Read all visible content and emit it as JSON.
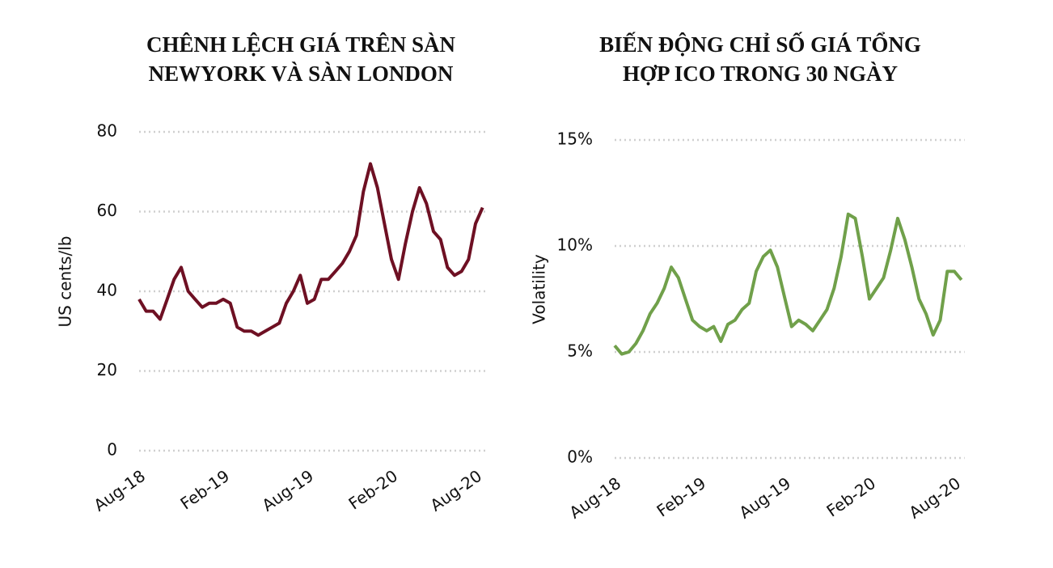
{
  "chart_data": [
    {
      "type": "line",
      "title": [
        "CHÊNH LỆCH GIÁ TRÊN SÀN",
        "NEWYORK VÀ SÀN LONDON"
      ],
      "y_label": "US cents/lb",
      "categories": [
        "Aug-18",
        null,
        null,
        null,
        null,
        null,
        null,
        null,
        null,
        null,
        null,
        null,
        "Feb-19",
        null,
        null,
        null,
        null,
        null,
        null,
        null,
        null,
        null,
        null,
        null,
        "Aug-19",
        null,
        null,
        null,
        null,
        null,
        null,
        null,
        null,
        null,
        null,
        null,
        "Feb-20",
        null,
        null,
        null,
        null,
        null,
        null,
        null,
        null,
        null,
        null,
        null,
        "Aug-20",
        null
      ],
      "series": [
        {
          "name": "US cents/lb",
          "color": "#6e1023",
          "values": [
            38,
            35,
            35,
            33,
            38,
            43,
            46,
            40,
            38,
            36,
            37,
            37,
            38,
            37,
            31,
            30,
            30,
            29,
            30,
            31,
            32,
            37,
            40,
            44,
            37,
            38,
            43,
            43,
            45,
            47,
            50,
            54,
            65,
            72,
            66,
            57,
            48,
            43,
            52,
            60,
            66,
            62,
            55,
            53,
            46,
            44,
            45,
            48,
            57,
            61
          ]
        }
      ],
      "ylim": [
        0,
        80
      ],
      "yticks": [
        0,
        20,
        40,
        60,
        80
      ],
      "grid": true
    },
    {
      "type": "line",
      "title": [
        "BIẾN ĐỘNG CHỈ SỐ GIÁ TỔNG",
        "HỢP ICO TRONG 30 NGÀY"
      ],
      "y_label": "Volatility",
      "categories": [
        "Aug-18",
        null,
        null,
        null,
        null,
        null,
        null,
        null,
        null,
        null,
        null,
        null,
        "Feb-19",
        null,
        null,
        null,
        null,
        null,
        null,
        null,
        null,
        null,
        null,
        null,
        "Aug-19",
        null,
        null,
        null,
        null,
        null,
        null,
        null,
        null,
        null,
        null,
        null,
        "Feb-20",
        null,
        null,
        null,
        null,
        null,
        null,
        null,
        null,
        null,
        null,
        null,
        "Aug-20",
        null
      ],
      "series": [
        {
          "name": "Volatility",
          "color": "#70a04a",
          "values": [
            5.3,
            4.9,
            5.0,
            5.4,
            6.0,
            6.8,
            7.3,
            8.0,
            9.0,
            8.5,
            7.5,
            6.5,
            6.2,
            6.0,
            6.2,
            5.5,
            6.3,
            6.5,
            7.0,
            7.3,
            8.8,
            9.5,
            9.8,
            9.0,
            7.6,
            6.2,
            6.5,
            6.3,
            6.0,
            6.5,
            7.0,
            8.0,
            9.5,
            11.5,
            11.3,
            9.5,
            7.5,
            8.0,
            8.5,
            9.8,
            11.3,
            10.3,
            9.0,
            7.5,
            6.8,
            5.8,
            6.5,
            8.8,
            8.8,
            8.4
          ]
        }
      ],
      "ylim": [
        0,
        15
      ],
      "yticks": [
        {
          "value": 0,
          "label": "0%"
        },
        {
          "value": 5,
          "label": "5%"
        },
        {
          "value": 10,
          "label": "10%"
        },
        {
          "value": 15,
          "label": "15%"
        }
      ],
      "grid": true
    }
  ]
}
